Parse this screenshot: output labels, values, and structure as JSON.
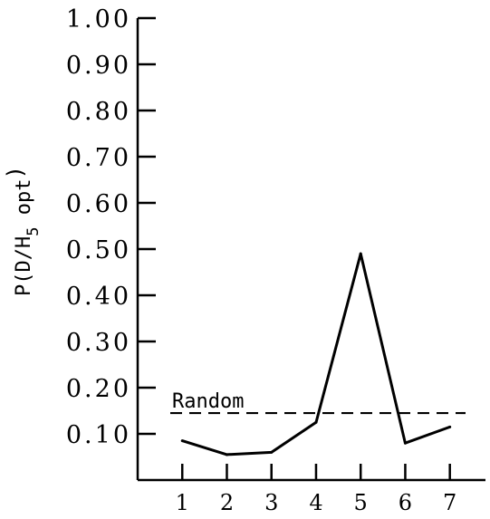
{
  "chart_data": {
    "type": "line",
    "title": "",
    "xlabel": "",
    "ylabel_parts": {
      "prefix": "P(D/H",
      "subscript": "5",
      "suffix": " opt",
      "close": ")"
    },
    "x": [
      1,
      2,
      3,
      4,
      5,
      6,
      7
    ],
    "x_tick_labels": [
      "1",
      "2",
      "3",
      "4",
      "5",
      "6",
      "7"
    ],
    "series": [
      {
        "values": [
          0.085,
          0.055,
          0.06,
          0.125,
          0.49,
          0.08,
          0.115
        ]
      }
    ],
    "y_ticks": [
      0.1,
      0.2,
      0.3,
      0.4,
      0.5,
      0.6,
      0.7,
      0.8,
      0.9,
      1.0
    ],
    "y_tick_labels": [
      "0.10",
      "0.20",
      "0.30",
      "0.40",
      "0.50",
      "0.60",
      "0.70",
      "0.80",
      "0.90",
      "1.00"
    ],
    "ylim": [
      0,
      1.0
    ],
    "xlim": [
      0,
      7.9
    ],
    "reference_line": {
      "label": "Random",
      "value": 0.145,
      "style": "dashed"
    },
    "grid": false,
    "colors": {
      "line": "#000000",
      "axis": "#000000",
      "background": "#ffffff"
    }
  }
}
